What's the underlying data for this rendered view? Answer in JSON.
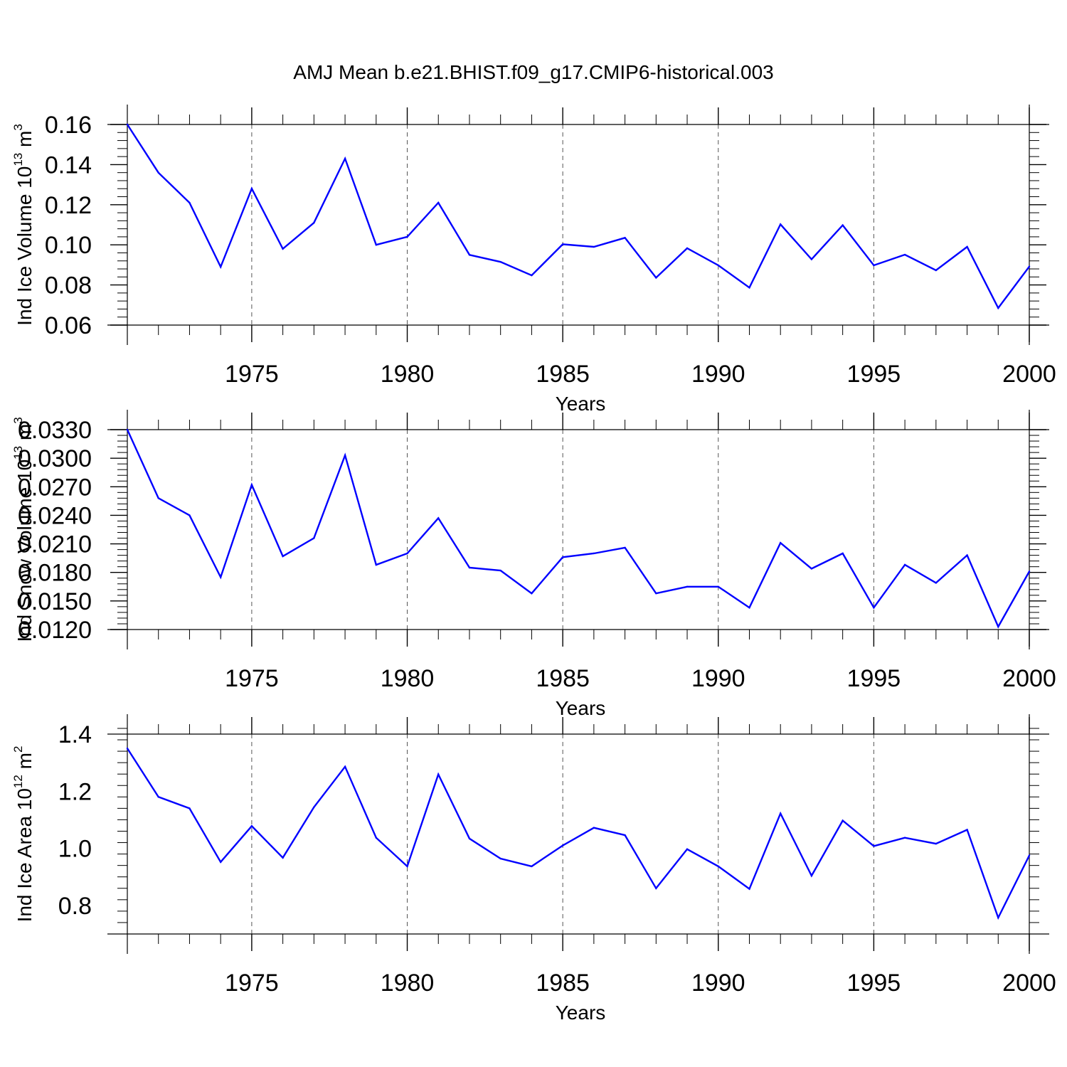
{
  "chart_data": [
    {
      "type": "line",
      "title": "AMJ Mean b.e21.BHIST.f09_g17.CMIP6-historical.003",
      "xlabel": "Years",
      "ylabel": {
        "text": "Ind Ice Volume 10",
        "exp": "13",
        "unit": " m",
        "unit_exp": "3"
      },
      "xlim": [
        1971,
        2000
      ],
      "ylim": [
        0.06,
        0.16
      ],
      "yticks": [
        0.06,
        0.08,
        0.1,
        0.12,
        0.14,
        0.16
      ],
      "ytick_labels": [
        "0.06",
        "0.08",
        "0.10",
        "0.12",
        "0.14",
        "0.16"
      ],
      "xticks": [
        1975,
        1980,
        1985,
        1990,
        1995,
        2000
      ],
      "xtick_labels": [
        "1975",
        "1980",
        "1985",
        "1990",
        "1995",
        "2000"
      ],
      "color": "#0000ff",
      "grid": "vertical dashed at major x ticks",
      "x": [
        1971,
        1972,
        1973,
        1974,
        1975,
        1976,
        1977,
        1978,
        1979,
        1980,
        1981,
        1982,
        1983,
        1984,
        1985,
        1986,
        1987,
        1988,
        1989,
        1990,
        1991,
        1992,
        1993,
        1994,
        1995,
        1996,
        1997,
        1998,
        1999,
        2000
      ],
      "values": [
        0.16,
        0.136,
        0.121,
        0.089,
        0.128,
        0.098,
        0.111,
        0.143,
        0.1,
        0.104,
        0.121,
        0.095,
        0.0915,
        0.0848,
        0.1003,
        0.099,
        0.1035,
        0.0836,
        0.0983,
        0.0898,
        0.0787,
        0.1102,
        0.0928,
        0.1098,
        0.0898,
        0.0951,
        0.0873,
        0.099,
        0.0685,
        0.0892
      ]
    },
    {
      "type": "line",
      "title": "",
      "xlabel": "Years",
      "ylabel": {
        "text": "Ind Snow Volume 10",
        "exp": "13",
        "unit": " m",
        "unit_exp": "3"
      },
      "xlim": [
        1971,
        2000
      ],
      "ylim": [
        0.012,
        0.033
      ],
      "yticks": [
        0.012,
        0.015,
        0.018,
        0.021,
        0.024,
        0.027,
        0.03,
        0.033
      ],
      "ytick_labels": [
        "0.0120",
        "0.0150",
        "0.0180",
        "0.0210",
        "0.0240",
        "0.0270",
        "0.0300",
        "0.0330"
      ],
      "xticks": [
        1975,
        1980,
        1985,
        1990,
        1995,
        2000
      ],
      "xtick_labels": [
        "1975",
        "1980",
        "1985",
        "1990",
        "1995",
        "2000"
      ],
      "color": "#0000ff",
      "grid": "vertical dashed at major x ticks",
      "x": [
        1971,
        1972,
        1973,
        1974,
        1975,
        1976,
        1977,
        1978,
        1979,
        1980,
        1981,
        1982,
        1983,
        1984,
        1985,
        1986,
        1987,
        1988,
        1989,
        1990,
        1991,
        1992,
        1993,
        1994,
        1995,
        1996,
        1997,
        1998,
        1999,
        2000
      ],
      "values": [
        0.033,
        0.0258,
        0.024,
        0.0175,
        0.0272,
        0.0197,
        0.0216,
        0.0303,
        0.0188,
        0.02,
        0.0237,
        0.0185,
        0.0182,
        0.0158,
        0.0196,
        0.02,
        0.0206,
        0.0158,
        0.0165,
        0.0165,
        0.0143,
        0.0211,
        0.0184,
        0.02,
        0.0143,
        0.0188,
        0.0169,
        0.0198,
        0.0123,
        0.0181
      ]
    },
    {
      "type": "line",
      "title": "",
      "xlabel": "Years",
      "ylabel": {
        "text": "Ind Ice Area 10",
        "exp": "12",
        "unit": " m",
        "unit_exp": "2"
      },
      "xlim": [
        1971,
        2000
      ],
      "ylim": [
        0.7,
        1.4
      ],
      "yticks": [
        0.8,
        1.0,
        1.2,
        1.4
      ],
      "ytick_labels": [
        "0.8",
        "1.0",
        "1.2",
        "1.4"
      ],
      "xticks": [
        1975,
        1980,
        1985,
        1990,
        1995,
        2000
      ],
      "xtick_labels": [
        "1975",
        "1980",
        "1985",
        "1990",
        "1995",
        "2000"
      ],
      "color": "#0000ff",
      "grid": "vertical dashed at major x ticks",
      "x": [
        1971,
        1972,
        1973,
        1974,
        1975,
        1976,
        1977,
        1978,
        1979,
        1980,
        1981,
        1982,
        1983,
        1984,
        1985,
        1986,
        1987,
        1988,
        1989,
        1990,
        1991,
        1992,
        1993,
        1994,
        1995,
        1996,
        1997,
        1998,
        1999,
        2000
      ],
      "values": [
        1.35,
        1.18,
        1.14,
        0.952,
        1.078,
        0.967,
        1.144,
        1.286,
        1.037,
        0.937,
        1.259,
        1.034,
        0.964,
        0.937,
        1.01,
        1.072,
        1.046,
        0.86,
        0.997,
        0.937,
        0.858,
        1.122,
        0.904,
        1.097,
        1.008,
        1.037,
        1.016,
        1.065,
        0.757,
        0.975
      ]
    }
  ]
}
